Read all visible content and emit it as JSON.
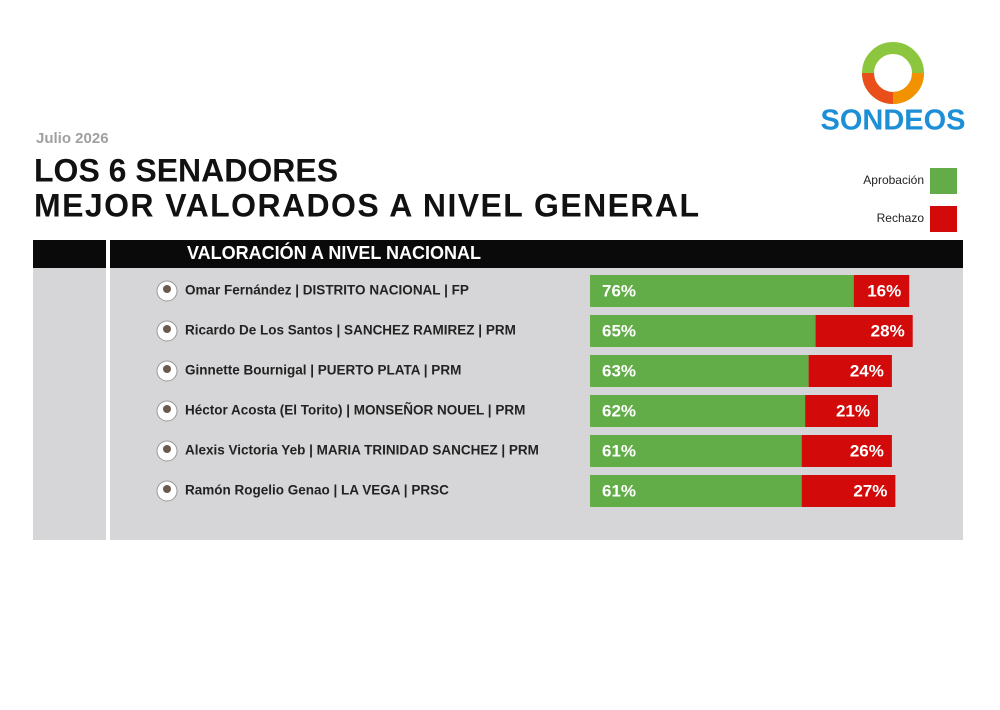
{
  "brand": "SONDEOS",
  "chart_data": {
    "type": "bar",
    "orientation": "horizontal",
    "stacked": true,
    "date": "Julio 2026",
    "title": [
      "LOS 6 SENADORES",
      "MEJOR VALORADOS A NIVEL GENERAL"
    ],
    "header": "VALORACIÓN  A NIVEL NACIONAL",
    "categories": [
      "Omar Fernández | DISTRITO NACIONAL  | FP",
      "Ricardo De Los Santos | SANCHEZ RAMIREZ | PRM",
      "Ginnette Bournigal | PUERTO PLATA  | PRM",
      "Héctor Acosta  (El Torito) | MONSEÑOR NOUEL | PRM",
      "Alexis Victoria Yeb | MARIA TRINIDAD SANCHEZ | PRM",
      "Ramón Rogelio Genao | LA VEGA | PRSC"
    ],
    "series": [
      {
        "name": "Aprobación",
        "color": "#62ad47",
        "values": [
          76,
          65,
          63,
          62,
          61,
          61
        ],
        "value_labels": [
          "76%",
          "65%",
          "63%",
          "62%",
          "61%",
          "61%"
        ]
      },
      {
        "name": "Rechazo",
        "color": "#d20a0a",
        "values": [
          16,
          28,
          24,
          21,
          26,
          27
        ],
        "value_labels": [
          "16%",
          "28%",
          "24%",
          "21%",
          "26%",
          "27%"
        ]
      }
    ],
    "xlim": [
      0,
      100
    ]
  }
}
